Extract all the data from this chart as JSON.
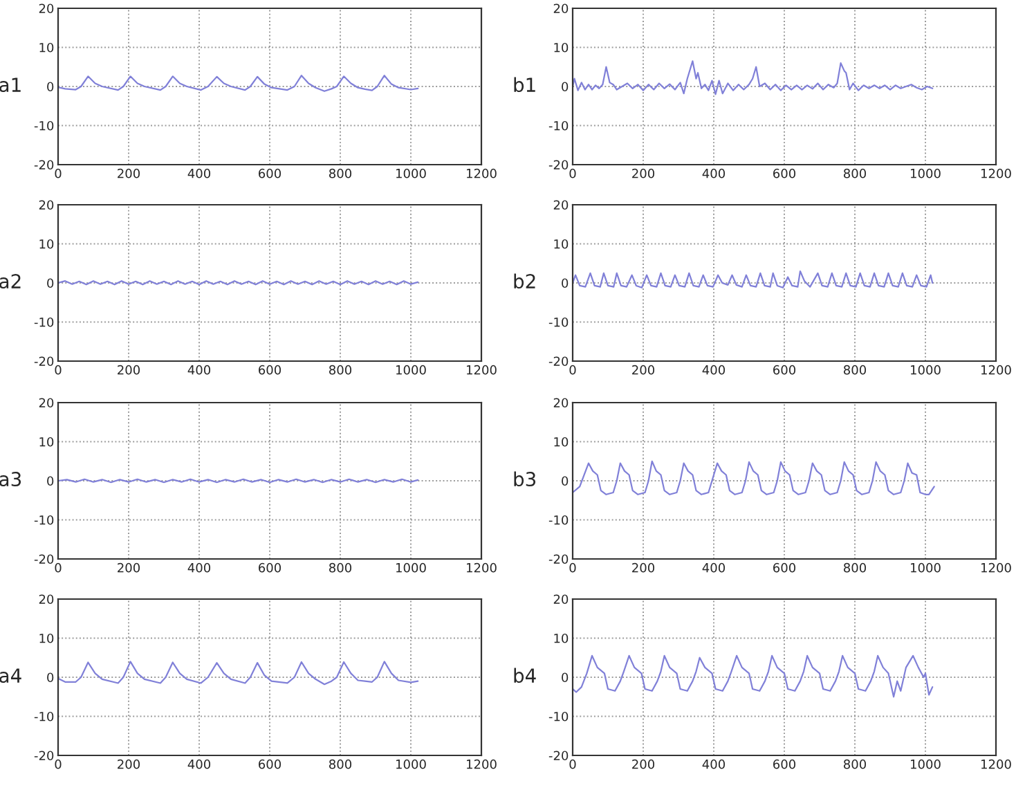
{
  "chart_data": [
    {
      "type": "line",
      "ylabel": "a1",
      "xlim": [
        0,
        1200
      ],
      "ylim": [
        -20,
        20
      ],
      "xticks": [
        0,
        200,
        400,
        600,
        800,
        1000,
        1200
      ],
      "yticks": [
        -20,
        -10,
        0,
        10,
        20
      ],
      "grid": true,
      "series": [
        {
          "color": "#8080d8",
          "x": [
            0,
            20,
            50,
            65,
            85,
            105,
            125,
            170,
            185,
            205,
            225,
            245,
            290,
            305,
            325,
            345,
            365,
            405,
            425,
            450,
            470,
            490,
            530,
            545,
            565,
            585,
            605,
            650,
            670,
            690,
            710,
            730,
            755,
            775,
            790,
            810,
            830,
            850,
            870,
            890,
            905,
            925,
            945,
            965,
            1000,
            1020
          ],
          "values": [
            -0.2,
            -0.6,
            -0.8,
            0,
            2.6,
            0.8,
            0,
            -0.9,
            0,
            2.6,
            0.8,
            0,
            -0.9,
            0,
            2.6,
            0.8,
            0,
            -0.9,
            0,
            2.5,
            0.8,
            0,
            -0.9,
            0,
            2.5,
            0.6,
            -0.3,
            -0.9,
            0,
            2.8,
            0.8,
            -0.3,
            -1.2,
            -0.6,
            0,
            2.6,
            0.8,
            -0.3,
            -0.7,
            -1,
            0,
            2.8,
            0.6,
            -0.3,
            -0.8,
            -0.5
          ]
        }
      ]
    },
    {
      "type": "line",
      "ylabel": "b1",
      "xlim": [
        0,
        1200
      ],
      "ylim": [
        -20,
        20
      ],
      "xticks": [
        0,
        200,
        400,
        600,
        800,
        1000,
        1200
      ],
      "yticks": [
        -20,
        -10,
        0,
        10,
        20
      ],
      "grid": true,
      "series": [
        {
          "color": "#8080d8",
          "x": [
            0,
            5,
            15,
            25,
            35,
            45,
            55,
            65,
            75,
            85,
            95,
            105,
            115,
            125,
            140,
            155,
            170,
            185,
            200,
            215,
            230,
            245,
            260,
            275,
            290,
            305,
            315,
            325,
            340,
            350,
            355,
            365,
            375,
            385,
            395,
            405,
            415,
            425,
            440,
            455,
            470,
            485,
            500,
            510,
            520,
            530,
            545,
            560,
            575,
            590,
            605,
            620,
            635,
            650,
            665,
            680,
            695,
            710,
            725,
            740,
            750,
            760,
            770,
            775,
            785,
            795,
            810,
            825,
            840,
            855,
            870,
            885,
            900,
            915,
            930,
            945,
            960,
            975,
            990,
            1005,
            1020
          ],
          "values": [
            0,
            2,
            -1,
            1,
            -0.8,
            0.5,
            -0.8,
            0.3,
            -0.5,
            0.5,
            5,
            1,
            0.5,
            -0.8,
            0,
            0.8,
            -0.5,
            0.5,
            -1,
            0.5,
            -0.8,
            0.8,
            -0.5,
            0.6,
            -0.8,
            1,
            -1.8,
            2,
            6.5,
            2,
            3.5,
            -0.5,
            0.5,
            -1,
            1.5,
            -2,
            1.5,
            -1.8,
            0.8,
            -1,
            0.5,
            -0.8,
            0.5,
            2,
            5,
            0,
            0.8,
            -0.8,
            0.5,
            -1,
            0.3,
            -0.8,
            0.3,
            -0.8,
            0.3,
            -0.6,
            0.8,
            -0.8,
            0.5,
            -0.3,
            0.8,
            6,
            4,
            3.5,
            -0.8,
            0.8,
            -1,
            0.3,
            -0.5,
            0.3,
            -0.5,
            0.3,
            -0.8,
            0.3,
            -0.5,
            0,
            0.5,
            -0.3,
            -0.8,
            0,
            -0.5
          ]
        }
      ]
    },
    {
      "type": "line",
      "ylabel": "a2",
      "xlim": [
        0,
        1200
      ],
      "ylim": [
        -20,
        20
      ],
      "xticks": [
        0,
        200,
        400,
        600,
        800,
        1000,
        1200
      ],
      "yticks": [
        -20,
        -10,
        0,
        10,
        20
      ],
      "grid": true,
      "series": [
        {
          "color": "#8080d8",
          "x": [
            0,
            20,
            40,
            60,
            80,
            100,
            120,
            140,
            160,
            180,
            200,
            220,
            240,
            260,
            280,
            300,
            320,
            340,
            360,
            380,
            400,
            420,
            440,
            460,
            480,
            500,
            520,
            540,
            560,
            580,
            600,
            620,
            640,
            660,
            680,
            700,
            720,
            740,
            760,
            780,
            800,
            820,
            840,
            860,
            880,
            900,
            920,
            940,
            960,
            980,
            1000,
            1020
          ],
          "values": [
            0,
            0.5,
            -0.3,
            0.4,
            -0.4,
            0.5,
            -0.3,
            0.4,
            -0.4,
            0.5,
            -0.3,
            0.4,
            -0.4,
            0.5,
            -0.3,
            0.4,
            -0.4,
            0.5,
            -0.3,
            0.4,
            -0.4,
            0.5,
            -0.3,
            0.4,
            -0.4,
            0.5,
            -0.3,
            0.4,
            -0.4,
            0.5,
            -0.3,
            0.4,
            -0.4,
            0.5,
            -0.3,
            0.4,
            -0.4,
            0.5,
            -0.3,
            0.4,
            -0.4,
            0.5,
            -0.3,
            0.4,
            -0.4,
            0.5,
            -0.3,
            0.4,
            -0.4,
            0.5,
            -0.3,
            0.2
          ]
        }
      ]
    },
    {
      "type": "line",
      "ylabel": "b2",
      "xlim": [
        0,
        1200
      ],
      "ylim": [
        -20,
        20
      ],
      "xticks": [
        0,
        200,
        400,
        600,
        800,
        1000,
        1200
      ],
      "yticks": [
        -20,
        -10,
        0,
        10,
        20
      ],
      "grid": true,
      "series": [
        {
          "color": "#8080d8",
          "x": [
            0,
            8,
            20,
            36,
            50,
            62,
            78,
            88,
            100,
            116,
            125,
            137,
            153,
            168,
            180,
            196,
            210,
            222,
            238,
            250,
            262,
            278,
            290,
            302,
            318,
            330,
            342,
            358,
            370,
            382,
            398,
            412,
            424,
            440,
            452,
            464,
            480,
            492,
            504,
            520,
            532,
            544,
            560,
            568,
            580,
            596,
            610,
            622,
            638,
            645,
            657,
            673,
            695,
            707,
            723,
            735,
            747,
            763,
            775,
            787,
            803,
            815,
            827,
            843,
            855,
            867,
            883,
            895,
            907,
            923,
            935,
            947,
            963,
            975,
            987,
            1003,
            1015,
            1020
          ],
          "values": [
            0,
            2,
            -0.7,
            -1,
            2.5,
            -0.7,
            -1,
            2.5,
            -0.7,
            -1,
            2.5,
            -0.7,
            -1,
            2,
            -0.7,
            -1.2,
            2,
            -0.7,
            -1,
            2.5,
            -0.7,
            -1,
            2,
            -0.7,
            -1,
            2.5,
            -0.7,
            -1,
            2,
            -0.7,
            -1,
            2,
            0,
            -0.5,
            2,
            -0.5,
            -1,
            2,
            -0.7,
            -1,
            2.5,
            -0.7,
            -1,
            2.5,
            -0.7,
            -1.2,
            1.5,
            -0.7,
            -1,
            3,
            0.5,
            -1,
            2.5,
            -0.7,
            -1,
            2.5,
            -0.7,
            -1,
            2.5,
            -0.7,
            -1,
            2.5,
            -0.7,
            -1,
            2.5,
            -0.7,
            -1,
            2.5,
            -0.7,
            -1,
            2.5,
            -0.7,
            -1,
            2,
            -0.7,
            -1,
            2,
            0
          ]
        }
      ]
    },
    {
      "type": "line",
      "ylabel": "a3",
      "xlim": [
        0,
        1200
      ],
      "ylim": [
        -20,
        20
      ],
      "xticks": [
        0,
        200,
        400,
        600,
        800,
        1000,
        1200
      ],
      "yticks": [
        -20,
        -10,
        0,
        10,
        20
      ],
      "grid": true,
      "series": [
        {
          "color": "#8080d8",
          "x": [
            0,
            25,
            50,
            75,
            100,
            125,
            150,
            175,
            200,
            225,
            250,
            275,
            300,
            325,
            350,
            375,
            400,
            425,
            450,
            475,
            500,
            525,
            550,
            575,
            600,
            625,
            650,
            675,
            700,
            725,
            750,
            775,
            800,
            825,
            850,
            875,
            900,
            925,
            950,
            975,
            1000,
            1020
          ],
          "values": [
            0,
            0.3,
            -0.3,
            0.4,
            -0.3,
            0.3,
            -0.4,
            0.3,
            -0.3,
            0.4,
            -0.3,
            0.3,
            -0.4,
            0.3,
            -0.3,
            0.4,
            -0.3,
            0.3,
            -0.4,
            0.3,
            -0.3,
            0.4,
            -0.3,
            0.3,
            -0.4,
            0.3,
            -0.3,
            0.4,
            -0.3,
            0.3,
            -0.4,
            0.3,
            -0.3,
            0.4,
            -0.3,
            0.3,
            -0.4,
            0.3,
            -0.3,
            0.4,
            -0.3,
            0.2
          ]
        }
      ]
    },
    {
      "type": "line",
      "ylabel": "b3",
      "xlim": [
        0,
        1200
      ],
      "ylim": [
        -20,
        20
      ],
      "xticks": [
        0,
        200,
        400,
        600,
        800,
        1000,
        1200
      ],
      "yticks": [
        -20,
        -10,
        0,
        10,
        20
      ],
      "grid": true,
      "series": [
        {
          "color": "#8080d8",
          "x": [
            0,
            20,
            45,
            57,
            70,
            80,
            95,
            115,
            125,
            135,
            147,
            160,
            170,
            185,
            205,
            215,
            225,
            237,
            250,
            260,
            275,
            295,
            305,
            315,
            327,
            340,
            350,
            365,
            385,
            395,
            410,
            422,
            435,
            445,
            460,
            480,
            490,
            500,
            512,
            525,
            535,
            550,
            570,
            580,
            590,
            602,
            615,
            625,
            640,
            660,
            670,
            680,
            692,
            705,
            715,
            730,
            750,
            760,
            770,
            782,
            795,
            805,
            820,
            840,
            850,
            860,
            872,
            885,
            895,
            910,
            930,
            940,
            950,
            962,
            975,
            985,
            1000,
            1010,
            1025
          ],
          "values": [
            -3,
            -1.5,
            4.5,
            2.5,
            1.5,
            -2.5,
            -3.5,
            -3,
            0,
            4.5,
            2.5,
            1.5,
            -2.5,
            -3.5,
            -3,
            0,
            5,
            2.5,
            1.5,
            -2.5,
            -3.5,
            -3,
            0,
            4.5,
            2.5,
            1.5,
            -2.5,
            -3.5,
            -3,
            0,
            4.5,
            2.5,
            1.5,
            -2.5,
            -3.5,
            -3,
            0,
            4.8,
            2.5,
            1.5,
            -2.5,
            -3.5,
            -3,
            0,
            4.8,
            2.5,
            1.5,
            -2.5,
            -3.5,
            -3,
            0,
            4.5,
            2.5,
            1.5,
            -2.5,
            -3.5,
            -3,
            0,
            4.8,
            2.5,
            1.5,
            -2.5,
            -3.5,
            -3,
            0,
            4.8,
            2.5,
            1.5,
            -2.5,
            -3.5,
            -3,
            0,
            4.5,
            2,
            1.5,
            -3,
            -3.5,
            -3.5,
            -1.5
          ]
        }
      ]
    },
    {
      "type": "line",
      "ylabel": "a4",
      "xlim": [
        0,
        1200
      ],
      "ylim": [
        -20,
        20
      ],
      "xticks": [
        0,
        200,
        400,
        600,
        800,
        1000,
        1200
      ],
      "yticks": [
        -20,
        -10,
        0,
        10,
        20
      ],
      "grid": true,
      "series": [
        {
          "color": "#8080d8",
          "x": [
            0,
            20,
            50,
            65,
            85,
            105,
            125,
            170,
            185,
            205,
            225,
            245,
            290,
            305,
            325,
            345,
            365,
            405,
            425,
            450,
            470,
            490,
            530,
            545,
            565,
            585,
            605,
            650,
            670,
            690,
            710,
            730,
            755,
            775,
            790,
            810,
            830,
            850,
            870,
            890,
            905,
            925,
            945,
            965,
            1000,
            1020
          ],
          "values": [
            -0.3,
            -1.2,
            -1.2,
            0,
            3.8,
            1,
            -0.5,
            -1.5,
            0,
            4,
            1,
            -0.5,
            -1.5,
            0,
            3.8,
            1,
            -0.5,
            -1.5,
            0,
            3.7,
            1,
            -0.5,
            -1.5,
            0,
            3.7,
            0.5,
            -1,
            -1.5,
            0,
            3.9,
            1,
            -0.5,
            -1.8,
            -1,
            0,
            3.9,
            1,
            -0.8,
            -1,
            -1.2,
            0,
            4,
            1,
            -0.8,
            -1.3,
            -1
          ]
        }
      ]
    },
    {
      "type": "line",
      "ylabel": "b4",
      "xlim": [
        0,
        1200
      ],
      "ylim": [
        -20,
        20
      ],
      "xticks": [
        0,
        200,
        400,
        600,
        800,
        1000,
        1200
      ],
      "yticks": [
        -20,
        -10,
        0,
        10,
        20
      ],
      "grid": true,
      "series": [
        {
          "color": "#8080d8",
          "x": [
            0,
            10,
            25,
            40,
            55,
            70,
            90,
            100,
            120,
            135,
            145,
            160,
            175,
            195,
            205,
            225,
            240,
            250,
            260,
            275,
            295,
            305,
            325,
            340,
            350,
            360,
            375,
            395,
            405,
            425,
            440,
            450,
            465,
            480,
            500,
            510,
            530,
            545,
            555,
            565,
            580,
            600,
            610,
            630,
            645,
            655,
            665,
            680,
            700,
            710,
            730,
            745,
            755,
            765,
            780,
            800,
            810,
            830,
            845,
            855,
            865,
            880,
            895,
            910,
            920,
            930,
            945,
            965,
            980,
            995,
            1000,
            1010,
            1020
          ],
          "values": [
            -3,
            -3.8,
            -2.5,
            1,
            5.5,
            2.5,
            1,
            -3,
            -3.5,
            -1,
            1.5,
            5.5,
            2.5,
            1,
            -3,
            -3.5,
            -1,
            1.5,
            5.5,
            2.5,
            1,
            -3,
            -3.5,
            -1,
            1.5,
            5,
            2.5,
            1,
            -3,
            -3.5,
            -1,
            1.5,
            5.5,
            2.5,
            1,
            -3,
            -3.5,
            -1,
            1.5,
            5.5,
            2.5,
            1,
            -3,
            -3.5,
            -1,
            1.5,
            5.5,
            2.5,
            1,
            -3,
            -3.5,
            -1,
            1.5,
            5.5,
            2.5,
            1,
            -3,
            -3.5,
            -1,
            1.5,
            5.5,
            2.5,
            1,
            -5,
            -1,
            -3.5,
            2.5,
            5.5,
            2.5,
            0,
            1,
            -4.5,
            -2.5
          ]
        }
      ]
    }
  ]
}
